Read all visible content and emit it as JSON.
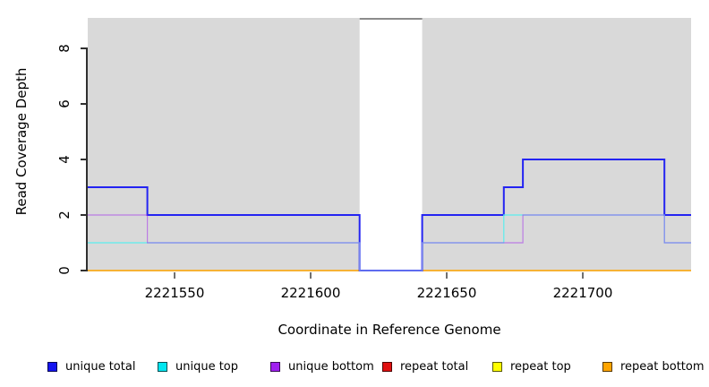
{
  "chart_data": {
    "type": "line",
    "step": true,
    "title": "",
    "xlabel": "Coordinate in Reference Genome",
    "ylabel": "Read Coverage Depth",
    "xlim": [
      2221518,
      2221740
    ],
    "ylim": [
      0,
      9.1
    ],
    "x_ticks": [
      2221550,
      2221600,
      2221650,
      2221700
    ],
    "x_tick_labels": [
      "2221550",
      "2221600",
      "2221650",
      "2221700"
    ],
    "y_ticks": [
      0,
      2,
      4,
      6,
      8
    ],
    "y_tick_labels": [
      "0",
      "2",
      "4",
      "6",
      "8"
    ],
    "grid": false,
    "plot_background": "#d9d9d9",
    "gap_region": {
      "start": 2221618,
      "end": 2221641,
      "fill": "#ffffff",
      "top_border": "#8c8c8c"
    },
    "series": [
      {
        "name": "repeat total",
        "color": "#dd0000",
        "width": 1,
        "opacity": 1,
        "segments": [
          [
            [
              2221518,
              0
            ],
            [
              2221618,
              0
            ]
          ],
          [
            [
              2221641,
              0
            ],
            [
              2221740,
              0
            ]
          ]
        ]
      },
      {
        "name": "repeat top",
        "color": "#ffff00",
        "width": 1,
        "opacity": 1,
        "segments": [
          [
            [
              2221518,
              0
            ],
            [
              2221618,
              0
            ]
          ],
          [
            [
              2221641,
              0
            ],
            [
              2221740,
              0
            ]
          ]
        ]
      },
      {
        "name": "repeat bottom",
        "color": "#ffa500",
        "width": 1.5,
        "opacity": 1,
        "segments": [
          [
            [
              2221518,
              0
            ],
            [
              2221618,
              0
            ]
          ],
          [
            [
              2221641,
              0
            ],
            [
              2221740,
              0
            ]
          ]
        ]
      },
      {
        "name": "unique total",
        "color": "#2424f2",
        "width": 2,
        "opacity": 1,
        "segments": [
          [
            [
              2221518,
              3
            ],
            [
              2221540,
              3
            ],
            [
              2221540,
              2
            ],
            [
              2221618,
              2
            ],
            [
              2221618,
              0
            ],
            [
              2221641,
              0
            ],
            [
              2221641,
              2
            ],
            [
              2221671,
              2
            ],
            [
              2221671,
              3
            ],
            [
              2221678,
              3
            ],
            [
              2221678,
              4
            ],
            [
              2221730,
              4
            ],
            [
              2221730,
              2
            ],
            [
              2221740,
              2
            ]
          ]
        ]
      },
      {
        "name": "unique top",
        "color": "#5ceded",
        "width": 1.2,
        "opacity": 1,
        "segments": [
          [
            [
              2221518,
              1
            ],
            [
              2221618,
              1
            ],
            [
              2221618,
              0
            ],
            [
              2221641,
              0
            ],
            [
              2221641,
              1
            ],
            [
              2221671,
              1
            ],
            [
              2221671,
              2
            ],
            [
              2221730,
              2
            ],
            [
              2221730,
              1
            ],
            [
              2221740,
              1
            ]
          ]
        ]
      },
      {
        "name": "unique bottom",
        "color": "#a020f0",
        "width": 1.2,
        "opacity": 0.5,
        "segments": [
          [
            [
              2221518,
              2
            ],
            [
              2221540,
              2
            ],
            [
              2221540,
              1
            ],
            [
              2221618,
              1
            ],
            [
              2221618,
              0
            ],
            [
              2221641,
              0
            ],
            [
              2221641,
              1
            ],
            [
              2221678,
              1
            ],
            [
              2221678,
              2
            ],
            [
              2221730,
              2
            ],
            [
              2221730,
              1
            ],
            [
              2221740,
              1
            ]
          ]
        ]
      }
    ],
    "legend": [
      {
        "label": "unique total",
        "color": "#1414f0"
      },
      {
        "label": "unique top",
        "color": "#00e6f0"
      },
      {
        "label": "unique bottom",
        "color": "#a020f0"
      },
      {
        "label": "repeat total",
        "color": "#e01010"
      },
      {
        "label": "repeat top",
        "color": "#ffff00"
      },
      {
        "label": "repeat bottom",
        "color": "#ffa500"
      }
    ],
    "legend_position": "bottom"
  }
}
